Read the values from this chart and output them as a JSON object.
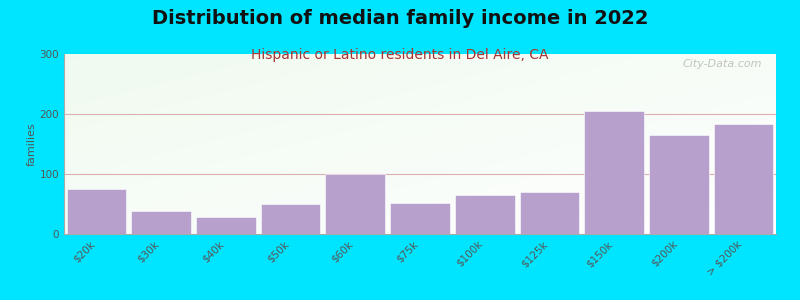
{
  "title": "Distribution of median family income in 2022",
  "subtitle": "Hispanic or Latino residents in Del Aire, CA",
  "ylabel": "families",
  "categories": [
    "$20k",
    "$30k",
    "$40k",
    "$50k",
    "$60k",
    "$75k",
    "$100k",
    "$125k",
    "$150k",
    "$200k",
    "> $200k"
  ],
  "values": [
    75,
    38,
    28,
    50,
    100,
    52,
    65,
    70,
    205,
    165,
    183
  ],
  "bar_color": "#b8a0cc",
  "ylim": [
    0,
    300
  ],
  "yticks": [
    0,
    100,
    200,
    300
  ],
  "background_color": "#00e5ff",
  "title_fontsize": 14,
  "subtitle_fontsize": 10,
  "subtitle_color": "#aa3333",
  "watermark": "City-Data.com",
  "grid_color": "#ddb0b0",
  "ylabel_fontsize": 8,
  "tick_fontsize": 7.5
}
